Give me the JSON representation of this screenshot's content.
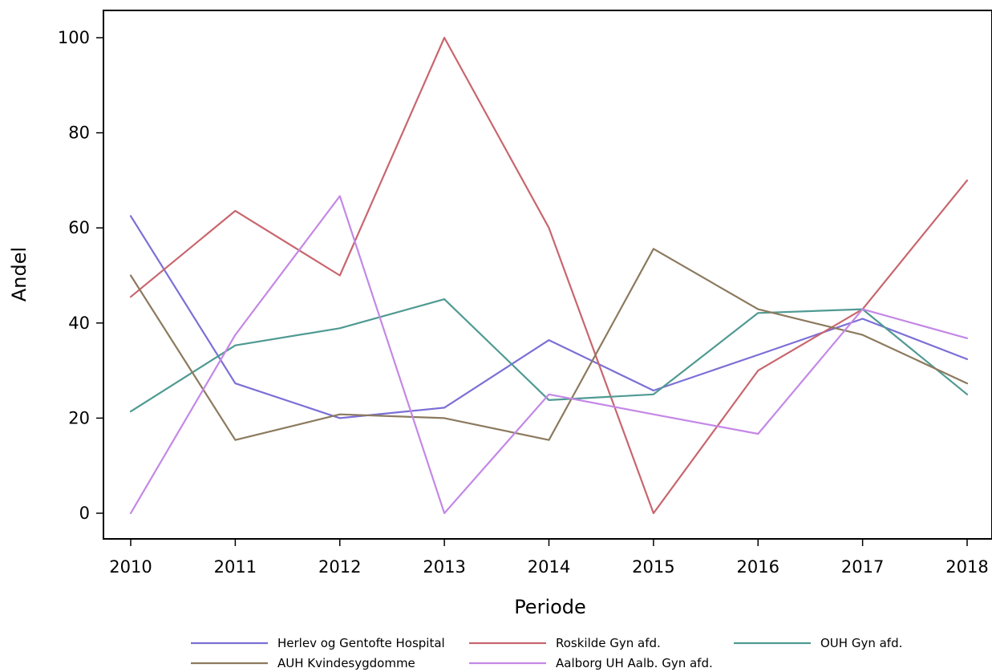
{
  "chart_data": {
    "type": "line",
    "title": "",
    "xlabel": "Periode",
    "ylabel": "Andel",
    "x": [
      "2010",
      "2011",
      "2012",
      "2013",
      "2014",
      "2015",
      "2016",
      "2017",
      "2018"
    ],
    "ylim": [
      -5,
      105
    ],
    "yticks": [
      "0",
      "20",
      "40",
      "60",
      "80",
      "100"
    ],
    "grid": false,
    "legend": "bottom",
    "series": [
      {
        "name": "Herlev og Gentofte Hospital",
        "color": "#7b6fd6",
        "values": [
          62.5,
          27.3,
          20.0,
          22.2,
          36.4,
          25.8,
          33.3,
          40.9,
          32.4
        ]
      },
      {
        "name": "Roskilde Gyn afd.",
        "color": "#c8666e",
        "values": [
          45.5,
          63.6,
          50.0,
          100.0,
          60.0,
          0.0,
          30.0,
          42.9,
          70.0
        ]
      },
      {
        "name": "OUH Gyn afd.",
        "color": "#4f9a92",
        "values": [
          21.4,
          35.3,
          38.9,
          45.0,
          23.8,
          25.0,
          42.1,
          42.9,
          25.0
        ]
      },
      {
        "name": "AUH Kvindesygdomme",
        "color": "#8c7a5e",
        "values": [
          50.0,
          15.4,
          20.8,
          20.0,
          15.4,
          55.6,
          42.9,
          37.5,
          27.3
        ]
      },
      {
        "name": "Aalborg UH Aalb. Gyn afd.",
        "color": "#c488e6",
        "values": [
          0.0,
          37.5,
          66.7,
          0.0,
          25.0,
          20.8,
          16.7,
          42.9,
          36.8
        ]
      }
    ]
  }
}
